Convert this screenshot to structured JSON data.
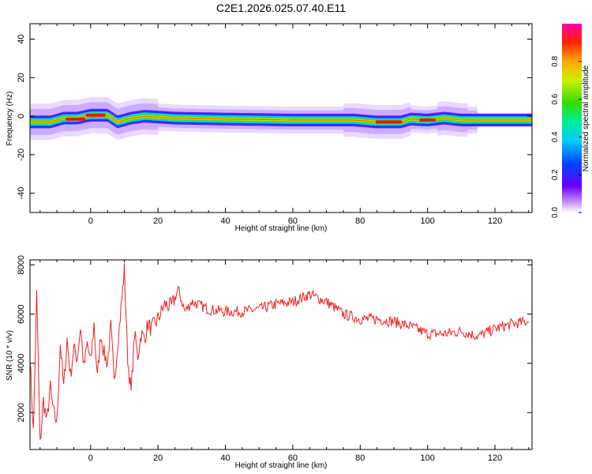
{
  "title": "C2E1.2026.025.07.40.E11",
  "chart_data": [
    {
      "type": "heatmap",
      "xlabel": "Height of straight line (km)",
      "ylabel": "Frequency (Hz)",
      "xlim": [
        -18,
        131
      ],
      "ylim": [
        -50,
        48
      ],
      "xticks": [
        0,
        20,
        40,
        60,
        80,
        100,
        120
      ],
      "yticks": [
        -40,
        -20,
        0,
        20,
        40
      ],
      "colorbar": {
        "label": "Normalized spectral amplitude",
        "ticks": [
          "0.0",
          "0.2",
          "0.4",
          "0.6",
          "0.8"
        ],
        "range": [
          0,
          1
        ]
      },
      "ridge": {
        "x": [
          -18,
          -12,
          -8,
          -4,
          0,
          5,
          8,
          12,
          16,
          25,
          40,
          60,
          78,
          85,
          92,
          95,
          100,
          105,
          110,
          131
        ],
        "freq": [
          -3,
          -3,
          -1,
          -1,
          0.5,
          0.5,
          -3,
          -1,
          0,
          -1,
          -1.5,
          -2,
          -2,
          -3,
          -3,
          -1.5,
          -2,
          -1,
          -2,
          -2
        ]
      },
      "peaks": [
        {
          "x_range": [
            -7,
            -2
          ],
          "freq": -1.5
        },
        {
          "x_range": [
            -1,
            4
          ],
          "freq": 0.5
        },
        {
          "x_range": [
            85,
            92
          ],
          "freq": -3
        },
        {
          "x_range": [
            98,
            102
          ],
          "freq": -2
        }
      ]
    },
    {
      "type": "line",
      "xlabel": "Height of straight line (km)",
      "ylabel": "SNR (10 * v/v)",
      "xlim": [
        -18,
        131
      ],
      "ylim": [
        500,
        8200
      ],
      "xticks": [
        0,
        20,
        40,
        60,
        80,
        100,
        120
      ],
      "yticks": [
        2000,
        4000,
        6000,
        8000
      ],
      "color": "#ee2222",
      "x": [
        -18,
        -17,
        -16,
        -15,
        -14,
        -13,
        -12,
        -11,
        -10,
        -9,
        -8,
        -7,
        -6,
        -5,
        -4,
        -3,
        -2,
        -1,
        0,
        1,
        2,
        3,
        4,
        5,
        6,
        7,
        8,
        9,
        10,
        11,
        12,
        13,
        14,
        15,
        16,
        17,
        18,
        20,
        22,
        24,
        26,
        28,
        30,
        35,
        40,
        45,
        50,
        55,
        60,
        65,
        70,
        75,
        80,
        85,
        90,
        95,
        100,
        105,
        110,
        115,
        120,
        125,
        130
      ],
      "y": [
        4300,
        1200,
        6800,
        700,
        2500,
        1600,
        3000,
        2000,
        1600,
        4800,
        3000,
        5000,
        3500,
        4600,
        4200,
        5500,
        3800,
        4800,
        4000,
        5600,
        3400,
        5200,
        4400,
        4000,
        5500,
        3200,
        4800,
        6200,
        7800,
        4200,
        2800,
        5200,
        4300,
        5200,
        5000,
        5600,
        5400,
        5800,
        6400,
        6300,
        7000,
        6100,
        6500,
        6200,
        6100,
        6100,
        6200,
        6400,
        6500,
        6800,
        6500,
        6000,
        5800,
        5800,
        5700,
        5500,
        5200,
        5200,
        5300,
        5100,
        5400,
        5600,
        5700
      ]
    }
  ]
}
